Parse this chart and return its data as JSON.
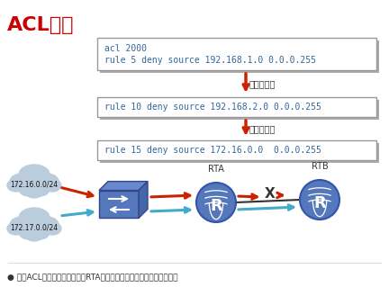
{
  "title": "ACL规则",
  "title_color": "#CC0000",
  "background_color": "#FFFFFF",
  "box1_line1": "acl 2000",
  "box1_line2": "rule 5 deny source 192.168.1.0 0.0.0.255",
  "box2_text": "rule 10 deny source 192.168.2.0 0.0.0.255",
  "box3_text": "rule 15 deny source 172.16.0.0  0.0.0.255",
  "if_no_match": "如果未匹配",
  "cloud1_label": "172.16.0.0/24",
  "cloud2_label": "172.17.0.0/24",
  "rta_label": "RTA",
  "rtb_label": "RTB",
  "footer_bullet": "●",
  "footer_text": " 每个ACL可以包含多个规则，RTA根据规则来对数据流量进行过滤小路",
  "box_bg": "#FFFFFF",
  "box_border": "#999999",
  "box_shadow": "#AAAAAA",
  "arrow_red": "#CC2200",
  "arrow_blue": "#44AACC",
  "router_fill": "#5577BB",
  "router_dark": "#3355AA",
  "switch_fill": "#5577BB",
  "switch_top": "#6688CC",
  "switch_right": "#4466AA",
  "cloud_fill": "#BBCCDD",
  "cloud_edge": "#8899BB",
  "monospace_color": "#336699",
  "label_color": "#333333",
  "fig_w": 4.32,
  "fig_h": 3.19,
  "dpi": 100
}
